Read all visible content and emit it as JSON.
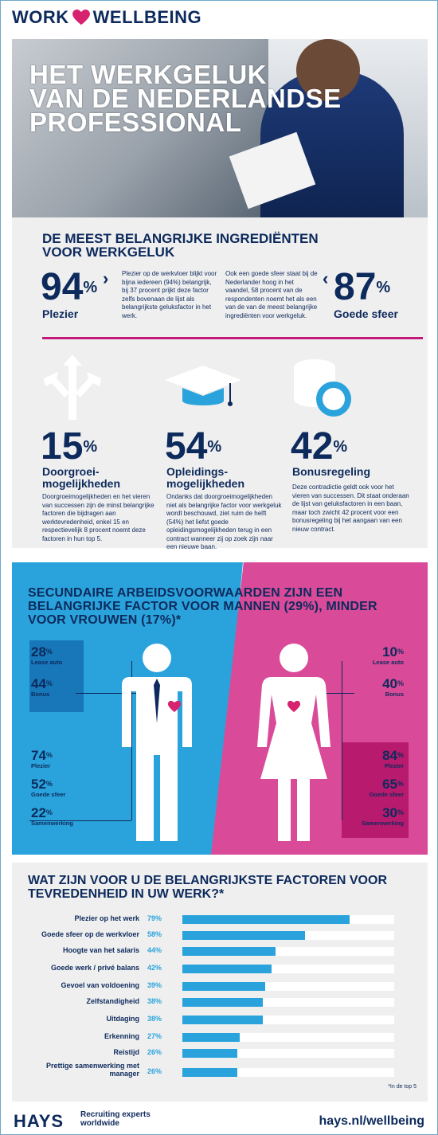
{
  "header": {
    "brand_left": "WORK",
    "brand_right": "WELLBEING",
    "heart_color": "#d6226f"
  },
  "hero": {
    "title_lines": [
      "HET WERKGELUK",
      "VAN DE NEDERLANDSE",
      "PROFESSIONAL"
    ]
  },
  "ingredients": {
    "title": "DE MEEST BELANGRIJKE INGREDIËNTEN VOOR WERKGELUK",
    "plezier": {
      "value": "94",
      "unit": "%",
      "label": "Plezier",
      "text": "Plezier op de werkvloer blijkt voor bijna iedereen (94%) belangrijk, bij 37 procent prijkt deze factor zelfs bovenaan de lijst als belangrijkste geluksfactor in het werk."
    },
    "sfeer": {
      "value": "87",
      "unit": "%",
      "label": "Goede sfeer",
      "text": "Ook een goede sfeer staat bij de Nederlander hoog in het vaandel, 58 procent van de respondenten noemt het als een van de van de meest belangrijke ingrediënten voor werkgeluk."
    },
    "groei": {
      "value": "15",
      "unit": "%",
      "label": "Doorgroei-\nmogelijkheden",
      "icon": "arrows-icon",
      "text": "Doorgroeimogelijkheden en het vieren van successen zijn de minst belangrijke factoren die bijdragen aan werktevredenheid, enkel 15 en respectievelijk 8 procent noemt deze factoren in hun top 5."
    },
    "opleiding": {
      "value": "54",
      "unit": "%",
      "label": "Opleidings-\nmogelijkheden",
      "icon": "graduation-cap-icon",
      "text": "Ondanks dat doorgroeimogelijkheden niet als belangrijke factor voor werkgeluk wordt beschouwd, ziet ruim de helft (54%) het liefst goede opleidingsmogelijkheden terug in een contract wanneer zij op zoek zijn naar een nieuwe baan."
    },
    "bonus": {
      "value": "42",
      "unit": "%",
      "label": "Bonusregeling",
      "icon": "coins-icon",
      "text": "Deze contradictie geldt ook voor het vieren van successen. Dit staat onderaan de lijst van geluksfactoren in een baan, maar toch zwicht 42 procent voor een bonusregeling bij het aangaan van een nieuw contract."
    }
  },
  "gender": {
    "title": "SECUNDAIRE ARBEIDSVOORWAARDEN ZIJN EEN BELANGRIJKE FACTOR VOOR MANNEN (29%), MINDER VOOR VROUWEN (17%)*",
    "men": [
      {
        "v": "28",
        "l": "Lease auto"
      },
      {
        "v": "44",
        "l": "Bonus"
      },
      {
        "v": "74",
        "l": "Plezier"
      },
      {
        "v": "52",
        "l": "Goede sfeer"
      },
      {
        "v": "22",
        "l": "Samenwerking"
      }
    ],
    "women": [
      {
        "v": "10",
        "l": "Lease auto"
      },
      {
        "v": "40",
        "l": "Bonus"
      },
      {
        "v": "84",
        "l": "Plezier"
      },
      {
        "v": "65",
        "l": "Goede sfeer"
      },
      {
        "v": "30",
        "l": "Samenwerking"
      }
    ],
    "pct": "%"
  },
  "factors": {
    "title": "WAT ZIJN VOOR U DE BELANGRIJKSTE FACTOREN VOOR TEVREDENHEID IN UW WERK?*",
    "footnote": "*In de top 5",
    "chart_data": {
      "type": "bar",
      "categories": [
        "Plezier op het werk",
        "Goede sfeer op de werkvloer",
        "Hoogte van het salaris",
        "Goede werk / privé balans",
        "Gevoel van voldoening",
        "Zelfstandigheid",
        "Uitdaging",
        "Erkenning",
        "Reistijd",
        "Prettige samenwerking met manager"
      ],
      "values": [
        79,
        58,
        44,
        42,
        39,
        38,
        38,
        27,
        26,
        26
      ],
      "labels": [
        "79%",
        "58%",
        "44%",
        "42%",
        "39%",
        "38%",
        "38%",
        "27%",
        "26%",
        "26%"
      ],
      "ylim": [
        0,
        100
      ]
    }
  },
  "footer": {
    "logo": "HAYS",
    "tagline_1": "Recruiting experts",
    "tagline_2": "worldwide",
    "url": "hays.nl/wellbeing"
  }
}
